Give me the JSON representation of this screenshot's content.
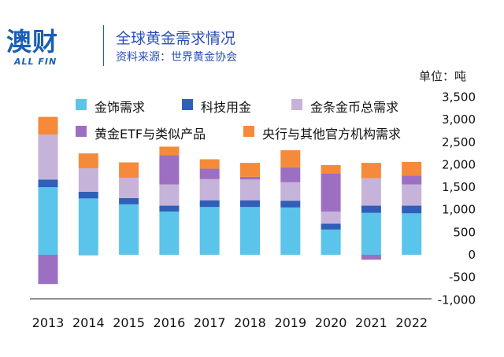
{
  "header": {
    "logo_main": "澳财",
    "logo_sub": "ALL FIN",
    "title": "全球黄金需求情况",
    "source": "资料来源：世界黄金协会"
  },
  "chart_data": {
    "type": "bar",
    "stacked": true,
    "unit_label": "单位：吨",
    "categories": [
      "2013",
      "2014",
      "2015",
      "2016",
      "2017",
      "2018",
      "2019",
      "2020",
      "2021",
      "2022"
    ],
    "ylim": [
      -1000,
      3500
    ],
    "yticks": [
      "-1,000",
      "-500",
      "0",
      "500",
      "1,000",
      "1,500",
      "2,000",
      "2,500",
      "3,000",
      "3,500"
    ],
    "ytick_values": [
      -1000,
      -500,
      0,
      500,
      1000,
      1500,
      2000,
      2500,
      3000,
      3500
    ],
    "legend_placement": "top",
    "series": [
      {
        "name": "金饰需求",
        "color": "#5bc4ea",
        "values": [
          1500,
          1250,
          1120,
          960,
          1060,
          1060,
          1050,
          560,
          930,
          920
        ]
      },
      {
        "name": "科技用金",
        "color": "#2f5fb8",
        "values": [
          170,
          150,
          140,
          130,
          150,
          150,
          150,
          130,
          160,
          170
        ]
      },
      {
        "name": "金条金币总需求",
        "color": "#c5b3d9",
        "values": [
          1000,
          520,
          450,
          470,
          470,
          460,
          410,
          270,
          610,
          470
        ]
      },
      {
        "name": "黄金ETF与类似产品",
        "color": "#9d6fc2",
        "values": [
          -650,
          -10,
          0,
          650,
          230,
          60,
          330,
          850,
          -110,
          200
        ]
      },
      {
        "name": "央行与其他官方机构需求",
        "color": "#f58a3a",
        "values": [
          390,
          330,
          340,
          190,
          210,
          310,
          380,
          180,
          340,
          300
        ]
      }
    ]
  }
}
